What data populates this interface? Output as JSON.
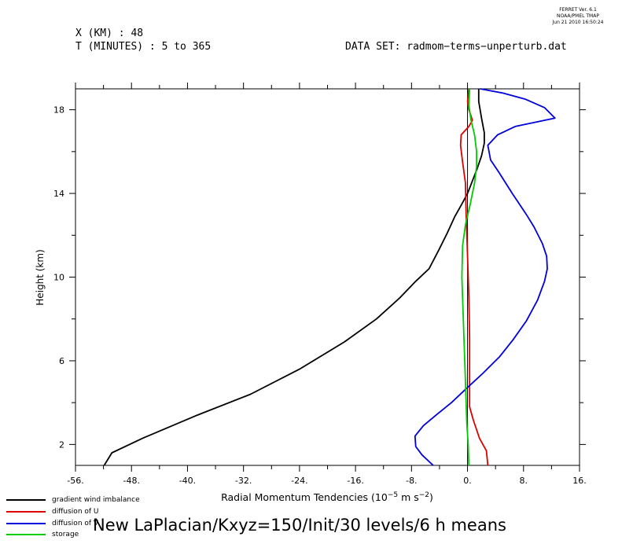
{
  "header": {
    "x_line": "X (KM) : 48",
    "t_line": "T (MINUTES) : 5 to 365",
    "dataset_line": "DATA SET: radmom−terms−unperturb.dat"
  },
  "stamp": {
    "line1": "FERRET Ver. 6.1",
    "line2": "NOAA/PMEL TMAP",
    "line3": "Jun 21 2010 16:50:24"
  },
  "bottom_title": "New LaPlacian/Kxyz=150/Init/30 levels/6 h means",
  "chart_data": {
    "type": "line",
    "xlabel_main": "Radial Momentum Tendencies (10",
    "xlabel_exp": "−5",
    "xlabel_mid": " m s",
    "xlabel_exp2": "−2",
    "xlabel_end": ")",
    "ylabel": "Height (km)",
    "xlim": [
      -56,
      16
    ],
    "ylim": [
      1,
      19
    ],
    "x_ticks": [
      -56,
      -48,
      -40,
      -32,
      -24,
      -16,
      -8,
      0,
      8,
      16
    ],
    "x_tick_labels": [
      "-56.",
      "-48.",
      "-40.",
      "-32.",
      "-24.",
      "-16.",
      "-8.",
      "0.",
      "8.",
      "16."
    ],
    "y_ticks": [
      2,
      6,
      10,
      14,
      18
    ],
    "y_tick_labels": [
      "2",
      "6",
      "10",
      "14",
      "18"
    ],
    "grid": false,
    "legend_position": "bottom-left",
    "series": [
      {
        "name": "gradient wind imbalance",
        "color": "#000000",
        "points": [
          [
            -51.9,
            1.0
          ],
          [
            -50.8,
            1.6
          ],
          [
            -46.4,
            2.3
          ],
          [
            -38.6,
            3.4
          ],
          [
            -31.0,
            4.4
          ],
          [
            -24.0,
            5.6
          ],
          [
            -17.6,
            6.9
          ],
          [
            -13.0,
            8.0
          ],
          [
            -9.7,
            9.0
          ],
          [
            -7.4,
            9.8
          ],
          [
            -5.5,
            10.4
          ],
          [
            -4.1,
            11.3
          ],
          [
            -2.9,
            12.1
          ],
          [
            -1.8,
            12.9
          ],
          [
            -0.8,
            13.5
          ],
          [
            0.0,
            14.0
          ],
          [
            0.7,
            14.6
          ],
          [
            1.4,
            15.2
          ],
          [
            2.0,
            15.8
          ],
          [
            2.4,
            16.4
          ],
          [
            2.4,
            16.9
          ],
          [
            2.0,
            17.6
          ],
          [
            1.6,
            18.4
          ],
          [
            1.6,
            19.0
          ]
        ]
      },
      {
        "name": "diffusion of U",
        "color": "#dd0000",
        "points": [
          [
            2.9,
            1.0
          ],
          [
            2.7,
            1.7
          ],
          [
            1.7,
            2.3
          ],
          [
            0.8,
            3.2
          ],
          [
            0.3,
            3.8
          ],
          [
            0.3,
            5.0
          ],
          [
            0.3,
            7.0
          ],
          [
            0.2,
            9.0
          ],
          [
            0.0,
            11.0
          ],
          [
            -0.2,
            13.0
          ],
          [
            -0.3,
            14.5
          ],
          [
            -0.7,
            15.5
          ],
          [
            -1.0,
            16.3
          ],
          [
            -0.9,
            16.8
          ],
          [
            0.2,
            17.2
          ],
          [
            0.7,
            17.5
          ],
          [
            0.2,
            18.0
          ],
          [
            0.0,
            18.4
          ],
          [
            0.2,
            19.0
          ]
        ]
      },
      {
        "name": "diffusion of V",
        "color": "#0000dd",
        "points": [
          [
            -4.9,
            1.0
          ],
          [
            -6.5,
            1.5
          ],
          [
            -7.4,
            1.9
          ],
          [
            -7.5,
            2.4
          ],
          [
            -6.3,
            2.9
          ],
          [
            -4.5,
            3.4
          ],
          [
            -2.3,
            4.0
          ],
          [
            -0.4,
            4.6
          ],
          [
            2.2,
            5.4
          ],
          [
            4.6,
            6.2
          ],
          [
            6.5,
            7.0
          ],
          [
            8.4,
            7.9
          ],
          [
            10.0,
            8.9
          ],
          [
            11.0,
            9.8
          ],
          [
            11.4,
            10.4
          ],
          [
            11.3,
            11.0
          ],
          [
            10.7,
            11.6
          ],
          [
            9.5,
            12.4
          ],
          [
            8.4,
            13.0
          ],
          [
            6.4,
            14.0
          ],
          [
            4.5,
            15.0
          ],
          [
            3.3,
            15.6
          ],
          [
            2.9,
            16.3
          ],
          [
            4.3,
            16.8
          ],
          [
            6.8,
            17.2
          ],
          [
            12.5,
            17.6
          ],
          [
            11.0,
            18.1
          ],
          [
            8.3,
            18.5
          ],
          [
            5.0,
            18.8
          ],
          [
            1.8,
            19.0
          ]
        ]
      },
      {
        "name": "storage",
        "color": "#00cc00",
        "points": [
          [
            0.2,
            1.0
          ],
          [
            0.1,
            2.0
          ],
          [
            -0.1,
            3.0
          ],
          [
            -0.2,
            4.0
          ],
          [
            -0.4,
            6.0
          ],
          [
            -0.6,
            8.0
          ],
          [
            -0.8,
            10.0
          ],
          [
            -0.7,
            11.5
          ],
          [
            -0.3,
            12.5
          ],
          [
            0.4,
            13.5
          ],
          [
            1.0,
            14.5
          ],
          [
            1.3,
            15.3
          ],
          [
            1.3,
            16.0
          ],
          [
            1.0,
            16.8
          ],
          [
            0.5,
            17.5
          ],
          [
            0.2,
            18.2
          ],
          [
            0.3,
            19.0
          ]
        ]
      }
    ]
  }
}
